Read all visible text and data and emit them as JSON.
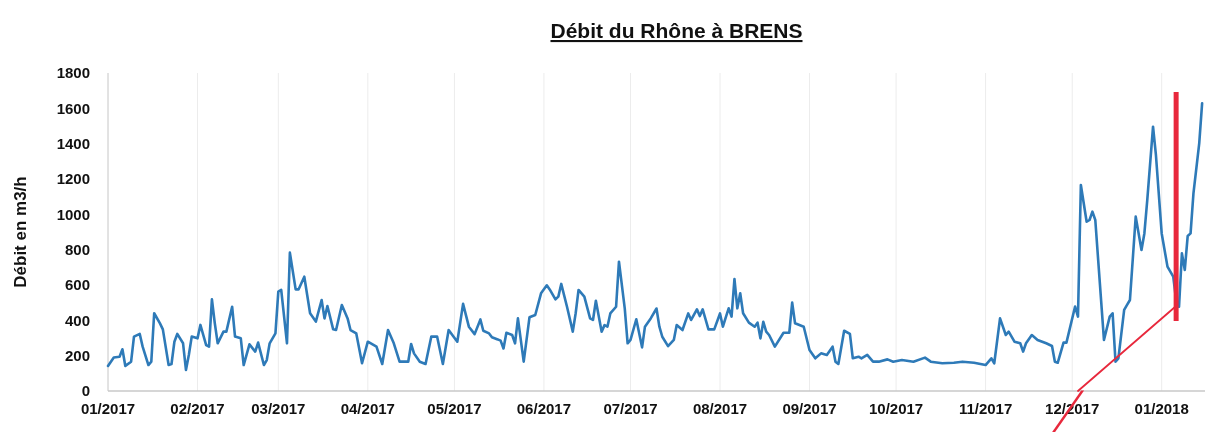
{
  "chart_data": {
    "type": "line",
    "title": "Débit du Rhône à BRENS",
    "ylabel": "Débit en m3/h",
    "x": [
      "2017-01-01",
      "2017-01-03",
      "2017-01-05",
      "2017-01-06",
      "2017-01-07",
      "2017-01-09",
      "2017-01-10",
      "2017-01-12",
      "2017-01-13",
      "2017-01-15",
      "2017-01-16",
      "2017-01-17",
      "2017-01-19",
      "2017-01-20",
      "2017-01-22",
      "2017-01-23",
      "2017-01-24",
      "2017-01-25",
      "2017-01-27",
      "2017-01-28",
      "2017-01-29",
      "2017-01-30",
      "2017-02-01",
      "2017-02-02",
      "2017-02-04",
      "2017-02-05",
      "2017-02-06",
      "2017-02-07",
      "2017-02-08",
      "2017-02-10",
      "2017-02-11",
      "2017-02-13",
      "2017-02-14",
      "2017-02-16",
      "2017-02-17",
      "2017-02-19",
      "2017-02-21",
      "2017-02-22",
      "2017-02-24",
      "2017-02-25",
      "2017-02-26",
      "2017-02-28",
      "2017-03-01",
      "2017-03-02",
      "2017-03-04",
      "2017-03-05",
      "2017-03-07",
      "2017-03-08",
      "2017-03-10",
      "2017-03-11",
      "2017-03-12",
      "2017-03-14",
      "2017-03-16",
      "2017-03-17",
      "2017-03-18",
      "2017-03-20",
      "2017-03-21",
      "2017-03-23",
      "2017-03-25",
      "2017-03-26",
      "2017-03-28",
      "2017-03-30",
      "2017-04-01",
      "2017-04-04",
      "2017-04-06",
      "2017-04-08",
      "2017-04-10",
      "2017-04-12",
      "2017-04-15",
      "2017-04-16",
      "2017-04-17",
      "2017-04-19",
      "2017-04-21",
      "2017-04-23",
      "2017-04-25",
      "2017-04-27",
      "2017-04-29",
      "2017-05-02",
      "2017-05-04",
      "2017-05-06",
      "2017-05-08",
      "2017-05-10",
      "2017-05-11",
      "2017-05-13",
      "2017-05-14",
      "2017-05-16",
      "2017-05-17",
      "2017-05-18",
      "2017-05-19",
      "2017-05-21",
      "2017-05-22",
      "2017-05-23",
      "2017-05-25",
      "2017-05-27",
      "2017-05-29",
      "2017-05-31",
      "2017-06-02",
      "2017-06-03",
      "2017-06-05",
      "2017-06-06",
      "2017-06-07",
      "2017-06-09",
      "2017-06-11",
      "2017-06-12",
      "2017-06-13",
      "2017-06-15",
      "2017-06-17",
      "2017-06-18",
      "2017-06-19",
      "2017-06-21",
      "2017-06-22",
      "2017-06-23",
      "2017-06-24",
      "2017-06-26",
      "2017-06-27",
      "2017-06-29",
      "2017-06-30",
      "2017-07-01",
      "2017-07-03",
      "2017-07-05",
      "2017-07-06",
      "2017-07-08",
      "2017-07-10",
      "2017-07-11",
      "2017-07-12",
      "2017-07-14",
      "2017-07-16",
      "2017-07-17",
      "2017-07-19",
      "2017-07-21",
      "2017-07-22",
      "2017-07-24",
      "2017-07-25",
      "2017-07-26",
      "2017-07-28",
      "2017-07-30",
      "2017-08-01",
      "2017-08-02",
      "2017-08-03",
      "2017-08-04",
      "2017-08-05",
      "2017-08-06",
      "2017-08-07",
      "2017-08-08",
      "2017-08-09",
      "2017-08-11",
      "2017-08-13",
      "2017-08-14",
      "2017-08-15",
      "2017-08-16",
      "2017-08-17",
      "2017-08-18",
      "2017-08-20",
      "2017-08-23",
      "2017-08-25",
      "2017-08-26",
      "2017-08-27",
      "2017-08-30",
      "2017-09-01",
      "2017-09-03",
      "2017-09-05",
      "2017-09-07",
      "2017-09-09",
      "2017-09-10",
      "2017-09-11",
      "2017-09-13",
      "2017-09-15",
      "2017-09-16",
      "2017-09-18",
      "2017-09-19",
      "2017-09-21",
      "2017-09-23",
      "2017-09-25",
      "2017-09-28",
      "2017-09-30",
      "2017-10-03",
      "2017-10-07",
      "2017-10-11",
      "2017-10-13",
      "2017-10-17",
      "2017-10-21",
      "2017-10-24",
      "2017-10-28",
      "2017-11-01",
      "2017-11-03",
      "2017-11-04",
      "2017-11-06",
      "2017-11-08",
      "2017-11-09",
      "2017-11-11",
      "2017-11-13",
      "2017-11-14",
      "2017-11-15",
      "2017-11-17",
      "2017-11-19",
      "2017-11-22",
      "2017-11-24",
      "2017-11-25",
      "2017-11-26",
      "2017-11-28",
      "2017-11-29",
      "2017-12-02",
      "2017-12-03",
      "2017-12-04",
      "2017-12-06",
      "2017-12-07",
      "2017-12-08",
      "2017-12-09",
      "2017-12-10",
      "2017-12-12",
      "2017-12-14",
      "2017-12-15",
      "2017-12-16",
      "2017-12-17",
      "2017-12-19",
      "2017-12-20",
      "2017-12-21",
      "2017-12-23",
      "2017-12-25",
      "2017-12-26",
      "2017-12-27",
      "2017-12-29",
      "2017-12-30",
      "2018-01-01",
      "2018-01-03",
      "2018-01-05",
      "2018-01-06",
      "2018-01-07",
      "2018-01-08",
      "2018-01-09",
      "2018-01-10",
      "2018-01-11",
      "2018-01-12",
      "2018-01-14",
      "2018-01-15"
    ],
    "series": [
      {
        "color": "#2e7ab8",
        "values": [
          142,
          190,
          194,
          236,
          142,
          166,
          308,
          323,
          251,
          147,
          166,
          440,
          383,
          349,
          147,
          153,
          279,
          323,
          270,
          119,
          204,
          308,
          298,
          374,
          260,
          251,
          519,
          383,
          270,
          336,
          336,
          477,
          308,
          298,
          147,
          264,
          223,
          274,
          147,
          175,
          270,
          326,
          562,
          572,
          270,
          783,
          575,
          575,
          647,
          543,
          440,
          393,
          515,
          411,
          481,
          349,
          345,
          487,
          411,
          345,
          326,
          157,
          279,
          251,
          153,
          345,
          270,
          166,
          166,
          266,
          213,
          166,
          153,
          308,
          308,
          153,
          345,
          279,
          493,
          364,
          322,
          405,
          341,
          326,
          304,
          292,
          285,
          241,
          330,
          317,
          270,
          411,
          166,
          417,
          430,
          553,
          598,
          575,
          519,
          534,
          606,
          477,
          336,
          440,
          572,
          534,
          411,
          402,
          511,
          336,
          373,
          364,
          439,
          477,
          732,
          468,
          270,
          289,
          406,
          247,
          364,
          411,
          467,
          364,
          307,
          254,
          289,
          373,
          345,
          439,
          402,
          462,
          424,
          462,
          349,
          349,
          439,
          364,
          417,
          468,
          421,
          634,
          468,
          553,
          440,
          387,
          364,
          387,
          298,
          392,
          336,
          317,
          251,
          330,
          330,
          500,
          383,
          364,
          232,
          185,
          213,
          204,
          251,
          166,
          153,
          341,
          323,
          185,
          194,
          185,
          204,
          166,
          166,
          179,
          166,
          175,
          166,
          189,
          166,
          157,
          160,
          166,
          160,
          147,
          185,
          157,
          411,
          317,
          336,
          279,
          270,
          223,
          270,
          317,
          289,
          270,
          255,
          166,
          160,
          274,
          274,
          478,
          421,
          1166,
          958,
          968,
          1015,
          968,
          741,
          289,
          421,
          440,
          166,
          185,
          459,
          487,
          515,
          987,
          798,
          892,
          1081,
          1496,
          1336,
          892,
          704,
          647,
          515,
          477,
          779,
          685,
          877,
          892,
          1119,
          1402,
          1628
        ]
      },
      {
        "type": "line",
        "color": "#e8283c",
        "x": [
          "2017-12-03",
          "2018-01-06"
        ],
        "values": [
          0,
          481
        ]
      }
    ],
    "xlim": [
      "2017-01-01",
      "2018-01-16"
    ],
    "xticks": [
      {
        "value": "2017-01-01",
        "label": "01/2017"
      },
      {
        "value": "2017-02-01",
        "label": "02/2017"
      },
      {
        "value": "2017-03-01",
        "label": "03/2017"
      },
      {
        "value": "2017-04-01",
        "label": "04/2017"
      },
      {
        "value": "2017-05-01",
        "label": "05/2017"
      },
      {
        "value": "2017-06-01",
        "label": "06/2017"
      },
      {
        "value": "2017-07-01",
        "label": "07/2017"
      },
      {
        "value": "2017-08-01",
        "label": "08/2017"
      },
      {
        "value": "2017-09-01",
        "label": "09/2017"
      },
      {
        "value": "2017-10-01",
        "label": "10/2017"
      },
      {
        "value": "2017-11-01",
        "label": "11/2017"
      },
      {
        "value": "2017-12-01",
        "label": "12/2017"
      },
      {
        "value": "2018-01-01",
        "label": "01/2018"
      }
    ],
    "ylim": [
      0,
      1800
    ],
    "yticks": [
      0,
      200,
      400,
      600,
      800,
      1000,
      1200,
      1400,
      1600,
      1800
    ],
    "grid": "x",
    "marker": "none",
    "line_style": "solid",
    "ref_lines": [
      {
        "axis": "x",
        "value": "2018-01-06",
        "color": "#e8283c"
      }
    ]
  }
}
